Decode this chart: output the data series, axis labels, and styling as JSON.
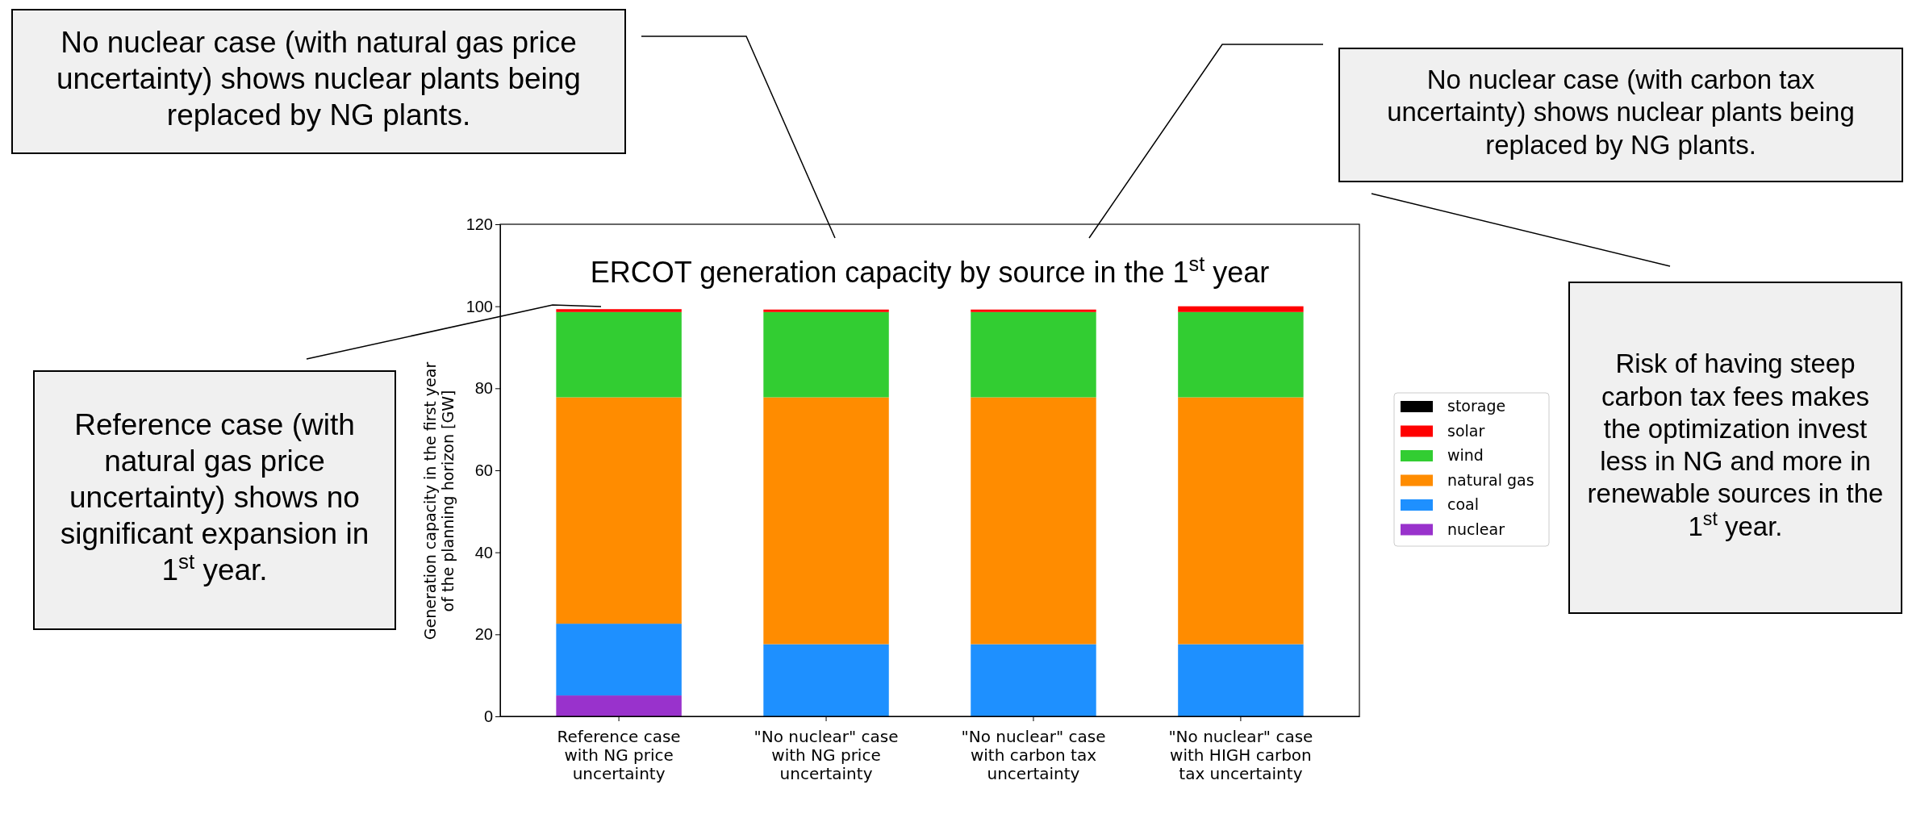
{
  "chart_data": {
    "type": "bar",
    "stacked": true,
    "title": "ERCOT generation capacity by source in the 1$^{st}$ year",
    "ylabel": "Generation capacity in the first year of the planning horizon [GW]",
    "categories": [
      "Reference case with NG price uncertainty",
      "\"No nuclear\" case with NG price uncertainty",
      "\"No nuclear\" case with carbon tax uncertainty",
      "\"No nuclear\" case with HIGH carbon tax uncertainty"
    ],
    "series": [
      {
        "name": "nuclear",
        "color": "#9932cc",
        "values": [
          5.1,
          0,
          0,
          0
        ]
      },
      {
        "name": "coal",
        "color": "#1e90ff",
        "values": [
          17.5,
          17.6,
          17.6,
          17.6
        ]
      },
      {
        "name": "natural gas",
        "color": "#ff8c00",
        "values": [
          55.2,
          60.2,
          60.2,
          60.2
        ]
      },
      {
        "name": "wind",
        "color": "#32cd32",
        "values": [
          20.8,
          20.8,
          20.8,
          20.8
        ]
      },
      {
        "name": "solar",
        "color": "#ff0000",
        "values": [
          0.7,
          0.6,
          0.6,
          1.4
        ]
      },
      {
        "name": "storage",
        "color": "#000000",
        "values": [
          0,
          0,
          0,
          0
        ]
      }
    ],
    "ylim": [
      0,
      120
    ],
    "yticks": [
      0,
      20,
      40,
      60,
      80,
      100,
      120
    ],
    "legend": "right",
    "annotations": [
      "No nuclear case (with natural gas price uncertainty) shows nuclear plants being replaced by NG plants.",
      "No nuclear case (with carbon tax uncertainty) shows nuclear plants being replaced by NG plants.",
      "Reference case (with natural gas price uncertainty) shows no significant expansion in 1$^{st}$ year.",
      "Risk of having steep carbon tax fees makes the optimization invest less in NG and more in renewable sources in the 1$^{st}$ year."
    ]
  }
}
